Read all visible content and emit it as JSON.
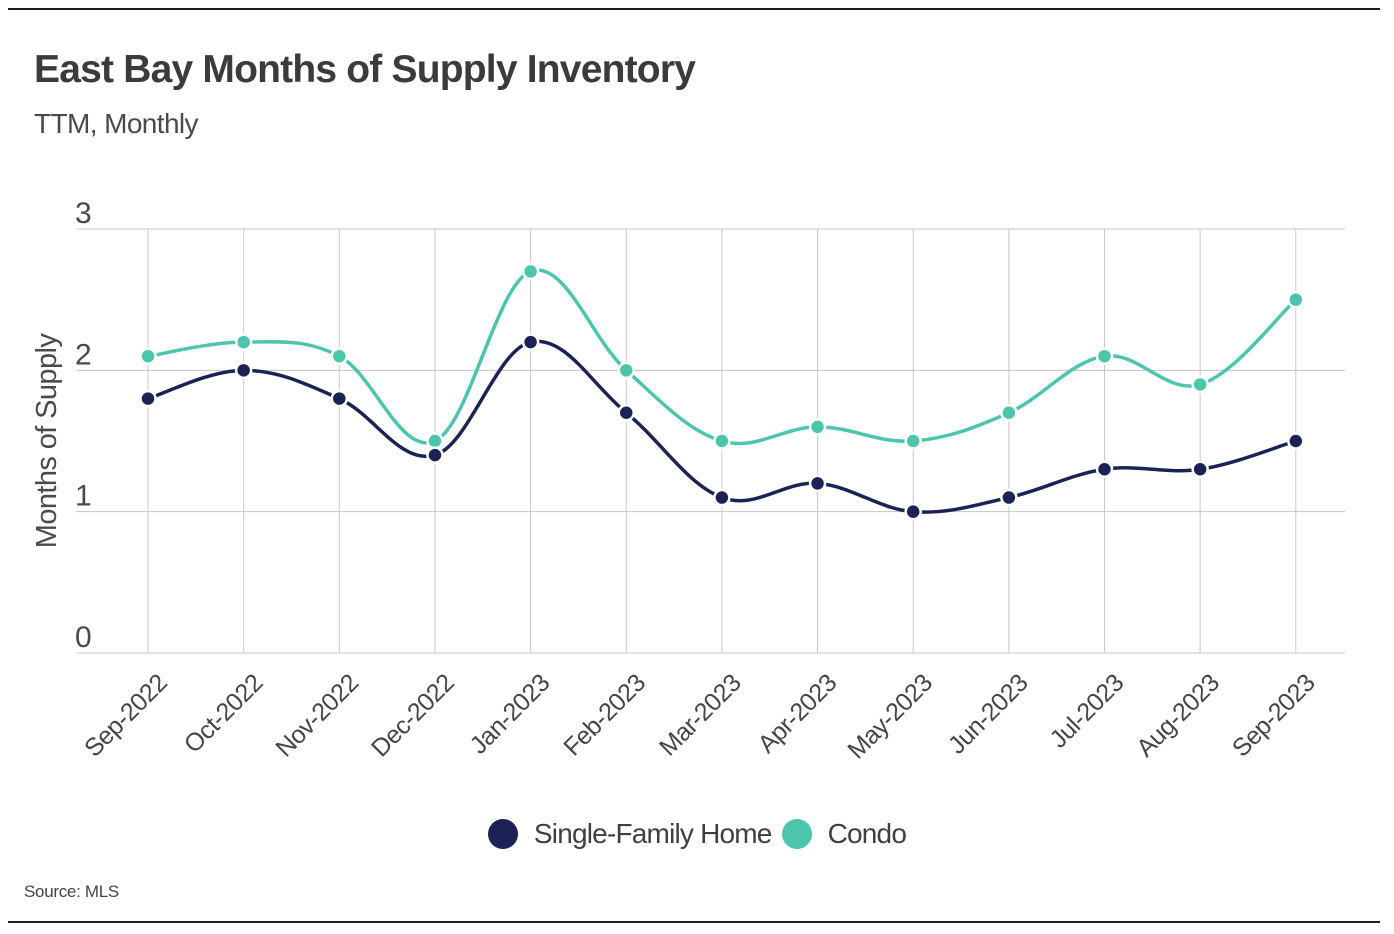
{
  "chart_data": {
    "type": "line",
    "title": "East Bay Months of Supply Inventory",
    "subtitle": "TTM, Monthly",
    "xlabel": "",
    "ylabel": "Months of Supply",
    "ylim": [
      0,
      3
    ],
    "yticks": [
      "0",
      "1",
      "2",
      "3"
    ],
    "grid": true,
    "legend_position": "bottom-center",
    "categories": [
      "Sep-2022",
      "Oct-2022",
      "Nov-2022",
      "Dec-2022",
      "Jan-2023",
      "Feb-2023",
      "Mar-2023",
      "Apr-2023",
      "May-2023",
      "Jun-2023",
      "Jul-2023",
      "Aug-2023",
      "Sep-2023"
    ],
    "series": [
      {
        "name": "Single-Family Home",
        "color": "#1b2356",
        "values": [
          1.8,
          2.0,
          1.8,
          1.4,
          2.2,
          1.7,
          1.1,
          1.2,
          1.0,
          1.1,
          1.3,
          1.3,
          1.5
        ]
      },
      {
        "name": "Condo",
        "color": "#4cc5ad",
        "values": [
          2.1,
          2.2,
          2.1,
          1.5,
          2.7,
          2.0,
          1.5,
          1.6,
          1.5,
          1.7,
          2.1,
          1.9,
          2.5
        ]
      }
    ],
    "source": "Source:  MLS"
  }
}
